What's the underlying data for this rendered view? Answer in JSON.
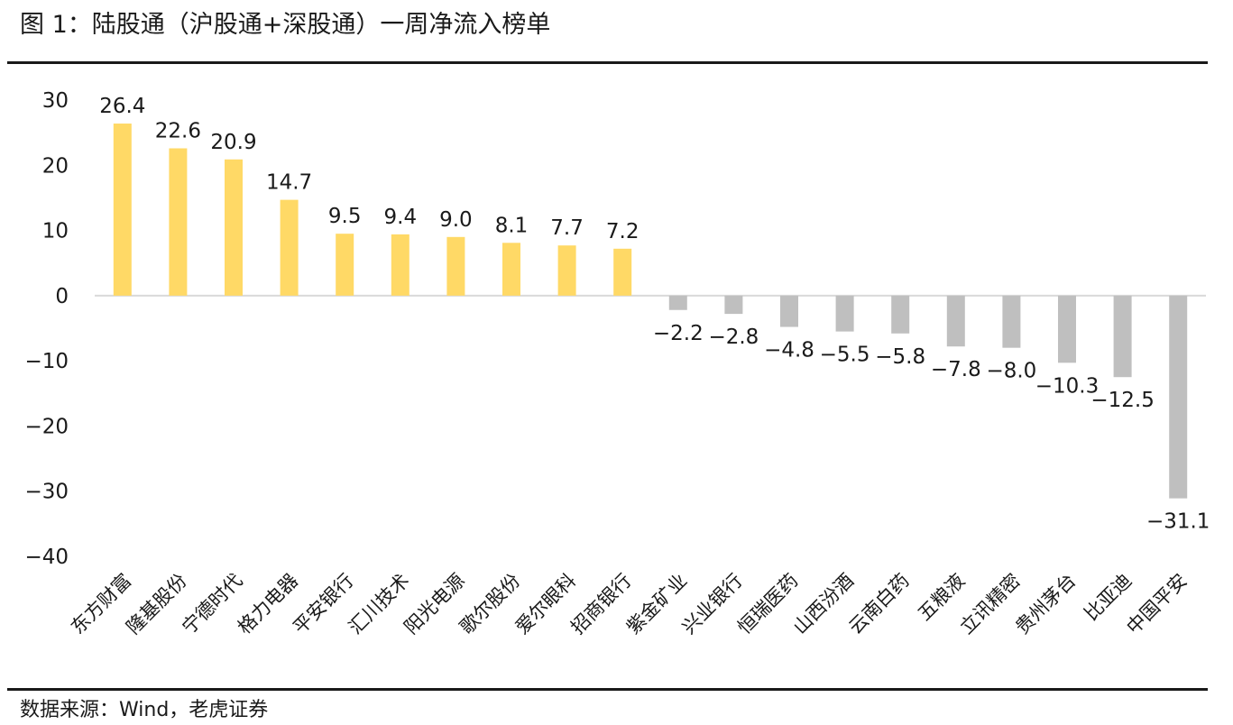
{
  "header": {
    "title": "图 1：陆股通（沪股通+深股通）一周净流入榜单"
  },
  "footer": {
    "source": "数据来源：Wind，老虎证券"
  },
  "colors": {
    "positive_bar": "#FFD966",
    "negative_bar": "#BFBFBF",
    "text": "#1a1a1a",
    "zero_line": "#D9D9D9"
  },
  "chart_data": {
    "type": "bar",
    "categories": [
      "东方财富",
      "隆基股份",
      "宁德时代",
      "格力电器",
      "平安银行",
      "汇川技术",
      "阳光电源",
      "歌尔股份",
      "爱尔眼科",
      "招商银行",
      "紫金矿业",
      "兴业银行",
      "恒瑞医药",
      "山西汾酒",
      "云南白药",
      "五粮液",
      "立讯精密",
      "贵州茅台",
      "比亚迪",
      "中国平安"
    ],
    "values": [
      26.4,
      22.6,
      20.9,
      14.7,
      9.5,
      9.4,
      9.0,
      8.1,
      7.7,
      7.2,
      -2.2,
      -2.8,
      -4.8,
      -5.5,
      -5.8,
      -7.8,
      -8.0,
      -10.3,
      -12.5,
      -31.1
    ],
    "data_labels": [
      "26.4",
      "22.6",
      "20.9",
      "14.7",
      "9.5",
      "9.4",
      "9.0",
      "8.1",
      "7.7",
      "7.2",
      "−2.2",
      "−2.8",
      "−4.8",
      "−5.5",
      "−5.8",
      "−7.8",
      "−8.0",
      "−10.3",
      "−12.5",
      "−31.1"
    ],
    "ylim": [
      -40,
      30
    ],
    "yticks": [
      30,
      20,
      10,
      0,
      -10,
      -20,
      -30,
      -40
    ],
    "ytick_labels": [
      "30",
      "20",
      "10",
      "0",
      "−10",
      "−20",
      "−30",
      "−40"
    ],
    "title": "",
    "xlabel": "",
    "ylabel": "",
    "grid": false,
    "legend": "none"
  }
}
